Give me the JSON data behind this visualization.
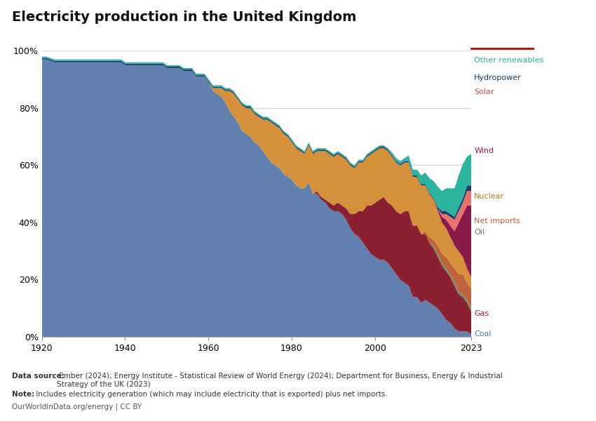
{
  "title": "Electricity production in the United Kingdom",
  "datasource_bold": "Data source:",
  "datasource_rest": " Ember (2024); Energy Institute - Statistical Review of World Energy (2024); Department for Business, Energy & Industrial\nStrategy of the UK (2023)",
  "note_bold": "Note:",
  "note_rest": " Includes electricity generation (which may include electricity that is exported) plus net imports.",
  "credit": "OurWorldInData.org/energy | CC BY",
  "years": [
    1920,
    1921,
    1922,
    1923,
    1924,
    1925,
    1926,
    1927,
    1928,
    1929,
    1930,
    1931,
    1932,
    1933,
    1934,
    1935,
    1936,
    1937,
    1938,
    1939,
    1940,
    1941,
    1942,
    1943,
    1944,
    1945,
    1946,
    1947,
    1948,
    1949,
    1950,
    1951,
    1952,
    1953,
    1954,
    1955,
    1956,
    1957,
    1958,
    1959,
    1960,
    1961,
    1962,
    1963,
    1964,
    1965,
    1966,
    1967,
    1968,
    1969,
    1970,
    1971,
    1972,
    1973,
    1974,
    1975,
    1976,
    1977,
    1978,
    1979,
    1980,
    1981,
    1982,
    1983,
    1984,
    1985,
    1986,
    1987,
    1988,
    1989,
    1990,
    1991,
    1992,
    1993,
    1994,
    1995,
    1996,
    1997,
    1998,
    1999,
    2000,
    2001,
    2002,
    2003,
    2004,
    2005,
    2006,
    2007,
    2008,
    2009,
    2010,
    2011,
    2012,
    2013,
    2014,
    2015,
    2016,
    2017,
    2018,
    2019,
    2020,
    2021,
    2022,
    2023
  ],
  "series": {
    "Coal": [
      97.0,
      97.0,
      96.5,
      96.0,
      96.0,
      96.0,
      96.0,
      96.0,
      96.0,
      96.0,
      96.0,
      96.0,
      96.0,
      96.0,
      96.0,
      96.0,
      96.0,
      96.0,
      96.0,
      96.0,
      95.0,
      95.0,
      95.0,
      95.0,
      95.0,
      95.0,
      95.0,
      95.0,
      95.0,
      95.0,
      94.0,
      94.0,
      94.0,
      94.0,
      93.0,
      93.0,
      93.0,
      91.0,
      91.0,
      91.0,
      89.0,
      86.0,
      85.0,
      84.0,
      82.0,
      79.0,
      77.0,
      75.0,
      72.0,
      71.0,
      70.0,
      68.0,
      67.0,
      65.0,
      63.0,
      61.0,
      60.0,
      59.0,
      57.0,
      56.0,
      55.0,
      53.0,
      52.0,
      52.0,
      54.0,
      50.0,
      50.0,
      48.0,
      47.0,
      45.0,
      44.0,
      44.0,
      43.0,
      41.0,
      38.0,
      36.0,
      35.0,
      33.0,
      31.0,
      29.0,
      28.0,
      27.0,
      27.0,
      26.0,
      24.0,
      22.0,
      20.0,
      19.0,
      18.0,
      14.0,
      14.0,
      12.0,
      13.0,
      12.0,
      11.0,
      10.0,
      8.0,
      6.0,
      5.0,
      3.0,
      2.0,
      2.0,
      2.0,
      1.0
    ],
    "Gas": [
      0.0,
      0.0,
      0.0,
      0.0,
      0.0,
      0.0,
      0.0,
      0.0,
      0.0,
      0.0,
      0.0,
      0.0,
      0.0,
      0.0,
      0.0,
      0.0,
      0.0,
      0.0,
      0.0,
      0.0,
      0.0,
      0.0,
      0.0,
      0.0,
      0.0,
      0.0,
      0.0,
      0.0,
      0.0,
      0.0,
      0.0,
      0.0,
      0.0,
      0.0,
      0.0,
      0.0,
      0.0,
      0.0,
      0.0,
      0.0,
      0.0,
      0.0,
      0.0,
      0.0,
      0.0,
      0.0,
      0.0,
      0.0,
      0.0,
      0.0,
      0.0,
      0.0,
      0.0,
      0.0,
      0.0,
      0.0,
      0.0,
      0.0,
      0.0,
      0.0,
      0.0,
      0.0,
      0.0,
      0.0,
      0.0,
      0.0,
      1.0,
      1.0,
      1.0,
      2.0,
      2.0,
      3.0,
      3.0,
      4.0,
      5.0,
      7.0,
      9.0,
      11.0,
      15.0,
      17.0,
      19.0,
      21.0,
      22.0,
      21.0,
      22.0,
      22.0,
      23.0,
      25.0,
      26.0,
      25.0,
      25.0,
      24.0,
      23.0,
      21.0,
      20.0,
      18.0,
      17.0,
      17.0,
      16.0,
      15.0,
      13.0,
      12.0,
      10.0,
      8.0
    ],
    "Oil": [
      0.0,
      0.0,
      0.0,
      0.0,
      0.0,
      0.0,
      0.0,
      0.0,
      0.0,
      0.0,
      0.0,
      0.0,
      0.0,
      0.0,
      0.0,
      0.0,
      0.0,
      0.0,
      0.0,
      0.0,
      0.0,
      0.0,
      0.0,
      0.0,
      0.0,
      0.0,
      0.0,
      0.0,
      0.0,
      0.0,
      0.0,
      0.0,
      0.0,
      0.0,
      0.0,
      0.0,
      0.0,
      0.0,
      0.0,
      0.0,
      0.0,
      0.0,
      0.0,
      0.0,
      0.0,
      0.0,
      0.0,
      0.0,
      0.0,
      0.0,
      0.0,
      0.0,
      0.0,
      0.0,
      0.0,
      0.0,
      0.0,
      0.0,
      0.0,
      0.0,
      0.0,
      0.0,
      0.0,
      0.0,
      0.0,
      0.0,
      0.0,
      0.0,
      0.0,
      0.0,
      0.0,
      0.0,
      0.0,
      0.0,
      0.0,
      0.0,
      0.0,
      0.0,
      0.0,
      0.0,
      0.0,
      0.0,
      0.0,
      0.0,
      0.0,
      0.0,
      0.0,
      0.0,
      0.0,
      0.0,
      0.0,
      0.0,
      0.0,
      0.0,
      1.0,
      1.0,
      1.0,
      1.0,
      1.0,
      1.0,
      1.0,
      1.0,
      1.0,
      1.0
    ],
    "Net imports": [
      0.0,
      0.0,
      0.0,
      0.0,
      0.0,
      0.0,
      0.0,
      0.0,
      0.0,
      0.0,
      0.0,
      0.0,
      0.0,
      0.0,
      0.0,
      0.0,
      0.0,
      0.0,
      0.0,
      0.0,
      0.0,
      0.0,
      0.0,
      0.0,
      0.0,
      0.0,
      0.0,
      0.0,
      0.0,
      0.0,
      0.0,
      0.0,
      0.0,
      0.0,
      0.0,
      0.0,
      0.0,
      0.0,
      0.0,
      0.0,
      0.0,
      0.0,
      0.0,
      0.0,
      0.0,
      0.0,
      0.0,
      0.0,
      0.0,
      0.0,
      0.0,
      0.0,
      0.0,
      0.0,
      0.0,
      0.0,
      0.0,
      0.0,
      0.0,
      0.0,
      0.0,
      0.0,
      0.0,
      0.0,
      0.0,
      0.0,
      0.0,
      0.0,
      0.0,
      0.0,
      0.0,
      0.0,
      0.0,
      0.0,
      0.0,
      0.0,
      0.0,
      0.0,
      0.0,
      0.0,
      0.0,
      0.0,
      0.0,
      0.0,
      0.0,
      0.0,
      0.0,
      0.0,
      0.0,
      0.0,
      0.0,
      0.0,
      1.0,
      2.0,
      2.0,
      3.0,
      3.0,
      4.0,
      4.0,
      5.0,
      6.0,
      7.0,
      6.0,
      7.0
    ],
    "Nuclear": [
      0.0,
      0.0,
      0.0,
      0.0,
      0.0,
      0.0,
      0.0,
      0.0,
      0.0,
      0.0,
      0.0,
      0.0,
      0.0,
      0.0,
      0.0,
      0.0,
      0.0,
      0.0,
      0.0,
      0.0,
      0.0,
      0.0,
      0.0,
      0.0,
      0.0,
      0.0,
      0.0,
      0.0,
      0.0,
      0.0,
      0.0,
      0.0,
      0.0,
      0.0,
      0.0,
      0.0,
      0.0,
      0.0,
      0.0,
      0.0,
      0.0,
      1.0,
      2.0,
      3.0,
      4.0,
      7.0,
      8.0,
      8.0,
      9.0,
      9.0,
      10.0,
      10.0,
      10.0,
      11.0,
      13.0,
      14.0,
      14.0,
      14.0,
      14.0,
      14.0,
      13.0,
      13.0,
      13.0,
      12.0,
      13.0,
      14.0,
      14.0,
      16.0,
      17.0,
      17.0,
      17.0,
      17.0,
      17.0,
      17.0,
      17.0,
      16.0,
      17.0,
      17.0,
      17.0,
      18.0,
      18.0,
      18.0,
      17.0,
      18.0,
      17.0,
      17.0,
      17.0,
      17.0,
      17.0,
      17.0,
      17.0,
      17.0,
      16.0,
      15.0,
      14.0,
      12.0,
      11.0,
      10.0,
      9.0,
      8.0,
      8.0,
      6.0,
      5.0,
      4.0
    ],
    "Wind": [
      0.0,
      0.0,
      0.0,
      0.0,
      0.0,
      0.0,
      0.0,
      0.0,
      0.0,
      0.0,
      0.0,
      0.0,
      0.0,
      0.0,
      0.0,
      0.0,
      0.0,
      0.0,
      0.0,
      0.0,
      0.0,
      0.0,
      0.0,
      0.0,
      0.0,
      0.0,
      0.0,
      0.0,
      0.0,
      0.0,
      0.0,
      0.0,
      0.0,
      0.0,
      0.0,
      0.0,
      0.0,
      0.0,
      0.0,
      0.0,
      0.0,
      0.0,
      0.0,
      0.0,
      0.0,
      0.0,
      0.0,
      0.0,
      0.0,
      0.0,
      0.0,
      0.0,
      0.0,
      0.0,
      0.0,
      0.0,
      0.0,
      0.0,
      0.0,
      0.0,
      0.0,
      0.0,
      0.0,
      0.0,
      0.0,
      0.0,
      0.0,
      0.0,
      0.0,
      0.0,
      0.0,
      0.0,
      0.0,
      0.0,
      0.0,
      0.0,
      0.0,
      0.0,
      0.0,
      0.0,
      0.0,
      0.0,
      0.0,
      0.0,
      0.0,
      0.0,
      0.0,
      0.0,
      0.0,
      0.0,
      0.0,
      0.0,
      0.0,
      0.0,
      0.0,
      1.0,
      2.0,
      3.0,
      4.0,
      5.0,
      10.0,
      15.0,
      22.0,
      25.0
    ],
    "Solar": [
      0.0,
      0.0,
      0.0,
      0.0,
      0.0,
      0.0,
      0.0,
      0.0,
      0.0,
      0.0,
      0.0,
      0.0,
      0.0,
      0.0,
      0.0,
      0.0,
      0.0,
      0.0,
      0.0,
      0.0,
      0.0,
      0.0,
      0.0,
      0.0,
      0.0,
      0.0,
      0.0,
      0.0,
      0.0,
      0.0,
      0.0,
      0.0,
      0.0,
      0.0,
      0.0,
      0.0,
      0.0,
      0.0,
      0.0,
      0.0,
      0.0,
      0.0,
      0.0,
      0.0,
      0.0,
      0.0,
      0.0,
      0.0,
      0.0,
      0.0,
      0.0,
      0.0,
      0.0,
      0.0,
      0.0,
      0.0,
      0.0,
      0.0,
      0.0,
      0.0,
      0.0,
      0.0,
      0.0,
      0.0,
      0.0,
      0.0,
      0.0,
      0.0,
      0.0,
      0.0,
      0.0,
      0.0,
      0.0,
      0.0,
      0.0,
      0.0,
      0.0,
      0.0,
      0.0,
      0.0,
      0.0,
      0.0,
      0.0,
      0.0,
      0.0,
      0.0,
      0.0,
      0.0,
      0.0,
      0.0,
      0.0,
      0.0,
      0.0,
      0.0,
      0.0,
      0.0,
      1.0,
      2.0,
      3.0,
      4.0,
      4.0,
      4.0,
      5.0,
      5.0
    ],
    "Hydropower": [
      0.5,
      0.5,
      0.5,
      0.5,
      0.5,
      0.5,
      0.5,
      0.5,
      0.5,
      0.5,
      0.5,
      0.5,
      0.5,
      0.5,
      0.5,
      0.5,
      0.5,
      0.5,
      0.5,
      0.5,
      0.5,
      0.5,
      0.5,
      0.5,
      0.5,
      0.5,
      0.5,
      0.5,
      0.5,
      0.5,
      0.5,
      0.5,
      0.5,
      0.5,
      0.5,
      0.5,
      0.5,
      0.5,
      0.5,
      0.5,
      0.5,
      0.5,
      0.5,
      0.5,
      0.5,
      0.5,
      0.5,
      0.5,
      0.5,
      0.5,
      0.5,
      0.5,
      0.5,
      0.5,
      0.5,
      0.5,
      0.5,
      0.5,
      0.5,
      0.5,
      0.5,
      0.5,
      0.5,
      0.5,
      0.5,
      0.5,
      0.5,
      0.5,
      0.5,
      0.5,
      0.5,
      0.5,
      0.5,
      0.5,
      0.5,
      0.5,
      0.5,
      0.5,
      0.5,
      0.5,
      0.5,
      0.5,
      0.5,
      0.5,
      0.5,
      0.5,
      0.5,
      0.5,
      0.5,
      0.5,
      0.5,
      0.5,
      0.5,
      0.5,
      0.5,
      0.5,
      1.0,
      1.0,
      1.0,
      1.0,
      1.5,
      1.5,
      2.0,
      2.0
    ],
    "Other renewables": [
      0.5,
      0.5,
      0.5,
      0.5,
      0.5,
      0.5,
      0.5,
      0.5,
      0.5,
      0.5,
      0.5,
      0.5,
      0.5,
      0.5,
      0.5,
      0.5,
      0.5,
      0.5,
      0.5,
      0.5,
      0.5,
      0.5,
      0.5,
      0.5,
      0.5,
      0.5,
      0.5,
      0.5,
      0.5,
      0.5,
      0.5,
      0.5,
      0.5,
      0.5,
      0.5,
      0.5,
      0.5,
      0.5,
      0.5,
      0.5,
      0.5,
      0.5,
      0.5,
      0.5,
      0.5,
      0.5,
      0.5,
      0.5,
      0.5,
      0.5,
      0.5,
      0.5,
      0.5,
      0.5,
      0.5,
      0.5,
      0.5,
      0.5,
      0.5,
      0.5,
      0.5,
      0.5,
      0.5,
      0.5,
      0.5,
      0.5,
      0.5,
      0.5,
      0.5,
      0.5,
      0.5,
      0.5,
      0.5,
      0.5,
      0.5,
      0.5,
      0.5,
      0.5,
      0.5,
      0.5,
      0.5,
      0.5,
      0.5,
      0.5,
      1.0,
      1.0,
      1.0,
      1.0,
      2.0,
      2.0,
      2.0,
      3.0,
      4.0,
      5.0,
      6.0,
      7.0,
      7.0,
      8.0,
      9.0,
      10.0,
      11.0,
      12.0,
      10.0,
      11.0
    ]
  },
  "colors": {
    "Coal": "#6080b0",
    "Gas": "#8B2030",
    "Oil": "#6B8E6B",
    "Net imports": "#C0623A",
    "Nuclear": "#D4913A",
    "Wind": "#8B1A4A",
    "Solar": "#E8736C",
    "Hydropower": "#1A3D6E",
    "Other renewables": "#2BB5A0"
  },
  "label_colors": {
    "Coal": "#4C72B0",
    "Gas": "#9B2335",
    "Oil": "#5B7B5B",
    "Net imports": "#C0623A",
    "Nuclear": "#C07820",
    "Wind": "#8B1A4A",
    "Solar": "#D05050",
    "Hydropower": "#1A3D6E",
    "Other renewables": "#2BB5A0"
  },
  "stack_order": [
    "Coal",
    "Gas",
    "Oil",
    "Net imports",
    "Nuclear",
    "Wind",
    "Solar",
    "Hydropower",
    "Other renewables"
  ],
  "background_color": "#ffffff"
}
